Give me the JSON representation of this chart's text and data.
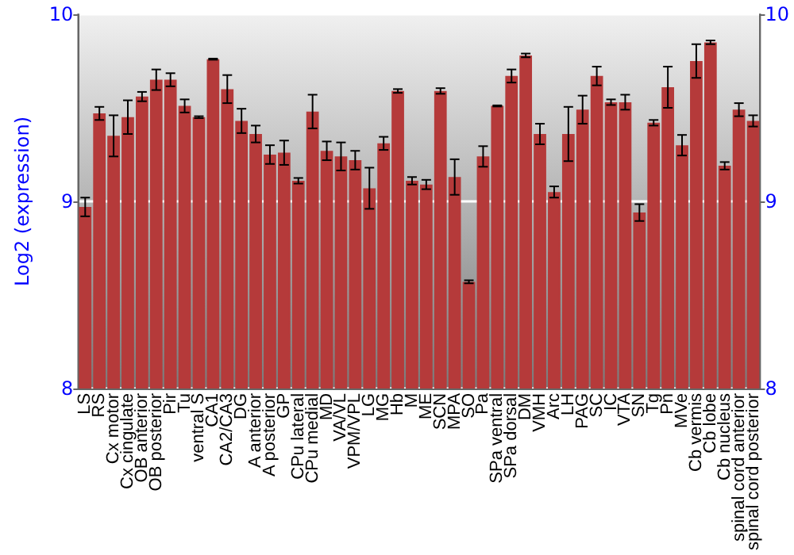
{
  "chart_data": {
    "type": "bar",
    "ylabel": "Log2 (expression)",
    "categories": [
      "LS",
      "RS",
      "Cx motor",
      "Cx cingulate",
      "OB anterior",
      "OB posterior",
      "Pir",
      "Tu",
      "ventral S",
      "CA1",
      "CA2/CA3",
      "DG",
      "A anterior",
      "A posterior",
      "GP",
      "CPu lateral",
      "CPu medial",
      "MD",
      "VA/VL",
      "VPM/VPL",
      "LG",
      "MG",
      "Hb",
      "M",
      "ME",
      "SCN",
      "MPA",
      "SO",
      "Pa",
      "SPa ventral",
      "SPa dorsal",
      "DM",
      "VMH",
      "Arc",
      "LH",
      "PAG",
      "SC",
      "IC",
      "VTA",
      "SN",
      "Tg",
      "Pn",
      "MVe",
      "Cb vermis",
      "Cb lobe",
      "Cb nucleus",
      "spinal cord anterior",
      "spinal cord posterior"
    ],
    "series": [
      {
        "color": "#b53a3a",
        "values": [
          8.97,
          9.47,
          9.35,
          9.45,
          9.56,
          9.65,
          9.65,
          9.51,
          9.45,
          9.76,
          9.6,
          9.43,
          9.36,
          9.25,
          9.26,
          9.11,
          9.48,
          9.27,
          9.24,
          9.22,
          9.07,
          9.31,
          9.59,
          9.11,
          9.09,
          9.59,
          9.13,
          8.57,
          9.24,
          9.51,
          9.67,
          9.78,
          9.36,
          9.05,
          9.36,
          9.49,
          9.67,
          9.53,
          9.53,
          8.94,
          9.42,
          9.61,
          9.3,
          9.75,
          9.85,
          9.19,
          9.49,
          9.43
        ],
        "errors": [
          0.05,
          0.035,
          0.11,
          0.09,
          0.025,
          0.055,
          0.035,
          0.035,
          0.005,
          0.003,
          0.075,
          0.065,
          0.045,
          0.05,
          0.065,
          0.015,
          0.09,
          0.05,
          0.075,
          0.05,
          0.11,
          0.035,
          0.01,
          0.02,
          0.025,
          0.015,
          0.095,
          0.008,
          0.055,
          0.003,
          0.035,
          0.01,
          0.055,
          0.03,
          0.145,
          0.075,
          0.05,
          0.015,
          0.04,
          0.045,
          0.015,
          0.11,
          0.055,
          0.09,
          0.01,
          0.02,
          0.035,
          0.03
        ]
      }
    ],
    "ylim": [
      8,
      10
    ],
    "yticks": [
      8,
      9,
      10
    ],
    "y2lim": [
      8,
      10
    ],
    "y2ticks": [
      8,
      9,
      10
    ],
    "grid": "y"
  }
}
